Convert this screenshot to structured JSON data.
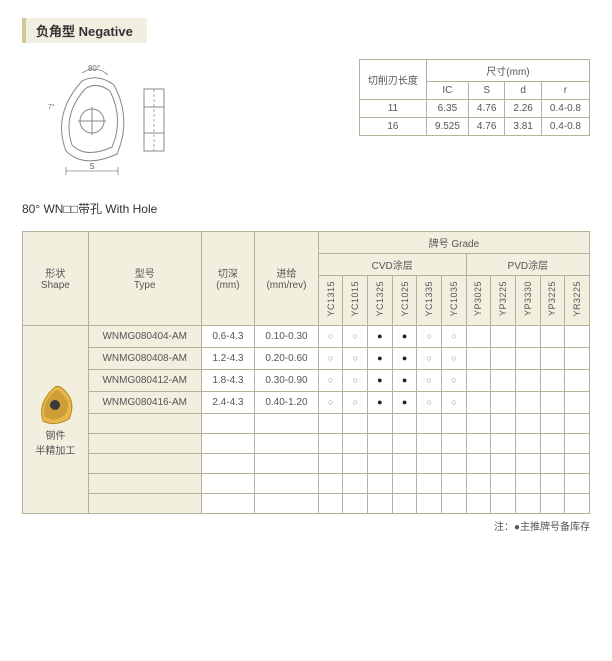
{
  "title": "负角型 Negative",
  "subtitle": "80°  WN□□带孔 With Hole",
  "diagram": {
    "angle_top": "80°",
    "angle_side": "7°",
    "label_bottom": "S",
    "stroke": "#888888",
    "insert_fill": "#e6b84a",
    "insert_shade": "#b88928"
  },
  "dim_table": {
    "header_main": "切削刃长度",
    "header_group": "尺寸(mm)",
    "cols": [
      "IC",
      "S",
      "d",
      "r"
    ],
    "rows": [
      [
        "11",
        "6.35",
        "4.76",
        "2.26",
        "0.4-0.8"
      ],
      [
        "16",
        "9.525",
        "4.76",
        "3.81",
        "0.4-0.8"
      ]
    ]
  },
  "main_table": {
    "headers": {
      "shape": "形状\nShape",
      "type": "型号\nType",
      "depth": "切深\n(mm)",
      "feed": "进给\n(mm/rev)",
      "grade": "牌号 Grade",
      "cvd": "CVD涂层",
      "pvd": "PVD涂层"
    },
    "grade_cols_cvd": [
      "YC1315",
      "YC1015",
      "YC1325",
      "YC1025",
      "YC1335",
      "YC1035"
    ],
    "grade_cols_pvd": [
      "YP3025",
      "YP3225",
      "YP3330",
      "YP3225",
      "YR3225"
    ],
    "shape_label": "钢件\n半精加工",
    "rows": [
      {
        "type": "WNMG080404-AM",
        "depth": "0.6-4.3",
        "feed": "0.10-0.30",
        "marks": [
          "o",
          "o",
          "s",
          "s",
          "o",
          "o",
          "",
          "",
          "",
          "",
          ""
        ]
      },
      {
        "type": "WNMG080408-AM",
        "depth": "1.2-4.3",
        "feed": "0.20-0.60",
        "marks": [
          "o",
          "o",
          "s",
          "s",
          "o",
          "o",
          "",
          "",
          "",
          "",
          ""
        ]
      },
      {
        "type": "WNMG080412-AM",
        "depth": "1.8-4.3",
        "feed": "0.30-0.90",
        "marks": [
          "o",
          "o",
          "s",
          "s",
          "o",
          "o",
          "",
          "",
          "",
          "",
          ""
        ]
      },
      {
        "type": "WNMG080416-AM",
        "depth": "2.4-4.3",
        "feed": "0.40-1.20",
        "marks": [
          "o",
          "o",
          "s",
          "s",
          "o",
          "o",
          "",
          "",
          "",
          "",
          ""
        ]
      }
    ],
    "empty_rows": 5
  },
  "legend": "注：●主推牌号备库存",
  "colors": {
    "header_bg": "#f2efdf",
    "border": "#b5b19a",
    "text": "#555555"
  }
}
